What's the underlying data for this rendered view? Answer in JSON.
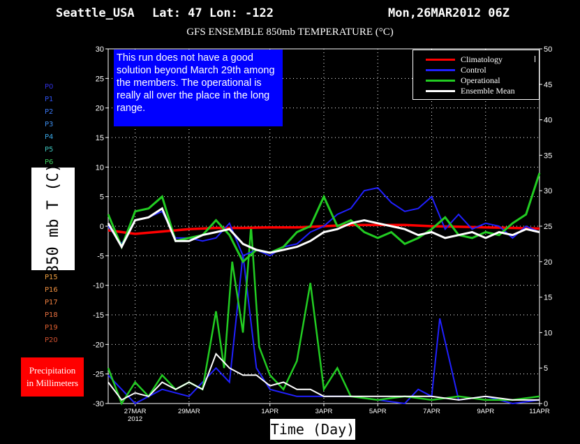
{
  "header": {
    "station": "Seattle_USA",
    "coords": "Lat: 47 Lon: -122",
    "run_time": "Mon,26MAR2012 06Z",
    "subtitle": "GFS ENSEMBLE 850mb TEMPERATURE (°C)"
  },
  "labels": {
    "y_axis": "850 mb T (C)",
    "x_axis": "Time (Day)",
    "precip_line1": "Precipitation",
    "precip_line2": "in Millimeters",
    "note": "This run does not have a good solution beyond March 29th among the members. The operational is really all over the place in the long range."
  },
  "members_top": [
    {
      "label": "P0",
      "color": "#3030e0"
    },
    {
      "label": "P1",
      "color": "#2f52f0"
    },
    {
      "label": "P2",
      "color": "#3a78f5"
    },
    {
      "label": "P3",
      "color": "#3d8ff0"
    },
    {
      "label": "P4",
      "color": "#3aa8e8"
    },
    {
      "label": "P5",
      "color": "#40c8c0"
    },
    {
      "label": "P6",
      "color": "#40d060"
    }
  ],
  "members_bottom": [
    {
      "label": "P15",
      "color": "#f0a040"
    },
    {
      "label": "P16",
      "color": "#f09040"
    },
    {
      "label": "P17",
      "color": "#f08040"
    },
    {
      "label": "P18",
      "color": "#e87040"
    },
    {
      "label": "P19",
      "color": "#e06030"
    },
    {
      "label": "P20",
      "color": "#d05030"
    }
  ],
  "legend": [
    {
      "label": "Climatology",
      "color": "#ff0000"
    },
    {
      "label": "Control",
      "color": "#2020ff"
    },
    {
      "label": "Operational",
      "color": "#22cc22"
    },
    {
      "label": "Ensemble Mean",
      "color": "#ffffff"
    }
  ],
  "chart_data": {
    "type": "line",
    "title": "GFS ENSEMBLE 850mb TEMPERATURE (°C)",
    "xlabel": "Time (Day)",
    "ylabel": "850 mb T (C)",
    "y2label": "Precipitation in Millimeters",
    "x_ticks": [
      "27MAR 2012",
      "29MAR",
      "1APR",
      "3APR",
      "5APR",
      "7APR",
      "9APR",
      "11APR"
    ],
    "x_tick_days": [
      1,
      3,
      6,
      8,
      10,
      12,
      14,
      16
    ],
    "x_range_days": [
      0,
      16
    ],
    "ylim": [
      -30,
      30
    ],
    "y_ticks": [
      -30,
      -25,
      -20,
      -15,
      -10,
      -5,
      0,
      5,
      10,
      15,
      20,
      25,
      30
    ],
    "y2lim": [
      0,
      50
    ],
    "y2_ticks": [
      0,
      5,
      10,
      15,
      20,
      25,
      30,
      35,
      40,
      45,
      50
    ],
    "grid": true,
    "legend_position": "top-right",
    "temperature_series": [
      {
        "name": "Climatology",
        "color": "#ff0000",
        "x": [
          0,
          1,
          2,
          3,
          4,
          5,
          6,
          7,
          8,
          9,
          10,
          11,
          12,
          13,
          14,
          15,
          16
        ],
        "values": [
          -0.7,
          -1.3,
          -0.9,
          -0.5,
          -0.3,
          -0.3,
          -0.2,
          -0.2,
          0,
          0.2,
          0.2,
          0.2,
          0,
          -0.1,
          -0.2,
          -0.3,
          -0.4
        ]
      },
      {
        "name": "Control",
        "color": "#2020ff",
        "x": [
          0,
          0.5,
          1,
          1.5,
          2,
          2.5,
          3,
          3.5,
          4,
          4.5,
          5,
          5.5,
          6,
          6.5,
          7,
          7.5,
          8,
          8.5,
          9,
          9.5,
          10,
          10.5,
          11,
          11.5,
          12,
          12.5,
          13,
          13.5,
          14,
          14.5,
          15,
          15.5,
          16
        ],
        "values": [
          0,
          -3,
          1,
          1.5,
          2.5,
          -2,
          -2,
          -2.5,
          -2,
          0.5,
          -5,
          -4,
          -5,
          -3.5,
          -3,
          -1,
          0,
          2,
          3,
          6,
          6.5,
          4,
          2.5,
          3,
          5,
          -0.5,
          2,
          -0.5,
          0.5,
          0,
          -2,
          0,
          -1
        ]
      },
      {
        "name": "Operational",
        "color": "#22cc22",
        "x": [
          0,
          0.5,
          1,
          1.5,
          2,
          2.5,
          3,
          3.5,
          4,
          4.5,
          5,
          5.5,
          6,
          6.5,
          7,
          7.5,
          8,
          8.5,
          9,
          9.5,
          10,
          10.5,
          11,
          11.5,
          12,
          12.5,
          13,
          13.5,
          14,
          14.5,
          15,
          15.5,
          16
        ],
        "values": [
          2,
          -3.5,
          2.5,
          3,
          5,
          -2.5,
          -2,
          -1.5,
          1,
          -1.5,
          -6,
          -4,
          -4.5,
          -3.5,
          -1,
          0,
          5,
          0,
          1,
          -1,
          -2,
          -1,
          -3,
          -2,
          -0.5,
          1.5,
          -1.5,
          -2,
          -1,
          -1.5,
          0.5,
          2,
          9
        ]
      },
      {
        "name": "Ensemble Mean",
        "color": "#ffffff",
        "x": [
          0,
          0.5,
          1,
          1.5,
          2,
          2.5,
          3,
          3.5,
          4,
          4.5,
          5,
          5.5,
          6,
          6.5,
          7,
          7.5,
          8,
          8.5,
          9,
          9.5,
          10,
          10.5,
          11,
          11.5,
          12,
          12.5,
          13,
          13.5,
          14,
          14.5,
          15,
          15.5,
          16
        ],
        "values": [
          0.5,
          -3.5,
          1,
          1.5,
          3,
          -2.5,
          -2.5,
          -1.5,
          -1,
          -0.5,
          -3,
          -4,
          -4.5,
          -4,
          -3.5,
          -2.5,
          -1,
          -0.5,
          0.5,
          1,
          0.5,
          0,
          -0.5,
          -1.5,
          -1,
          -2,
          -1.5,
          -1,
          -2,
          -1,
          -1.5,
          -0.5,
          -1
        ]
      }
    ],
    "precipitation_series": [
      {
        "name": "Control",
        "color": "#2020ff",
        "x": [
          0,
          1,
          2,
          3,
          4,
          4.5,
          5,
          5.5,
          6,
          7,
          8,
          9,
          10,
          11,
          11.5,
          12,
          12.3,
          13,
          14,
          15,
          16
        ],
        "values": [
          4,
          0,
          2,
          1,
          5,
          3,
          21,
          5,
          2,
          1,
          1,
          1,
          0.5,
          0,
          2,
          1,
          12,
          0.5,
          1,
          0,
          0.5
        ]
      },
      {
        "name": "Operational",
        "color": "#22cc22",
        "x": [
          0,
          0.5,
          1,
          1.5,
          2,
          2.5,
          3,
          3.5,
          4,
          4.3,
          4.6,
          5,
          5.3,
          5.6,
          6,
          6.5,
          7,
          7.5,
          8,
          8.5,
          9,
          10,
          11,
          12,
          13,
          14,
          15,
          16
        ],
        "values": [
          5,
          0,
          3,
          1,
          4,
          2,
          3,
          2,
          13,
          5,
          20,
          10,
          25,
          8,
          4,
          2,
          6,
          17,
          2,
          5,
          1,
          0.5,
          1,
          0.5,
          1,
          0.5,
          0.5,
          1
        ]
      },
      {
        "name": "Ensemble Mean",
        "color": "#ffffff",
        "x": [
          0,
          0.5,
          1,
          1.5,
          2,
          2.5,
          3,
          3.5,
          4,
          4.5,
          5,
          5.5,
          6,
          6.5,
          7,
          7.5,
          8,
          9,
          10,
          11,
          12,
          13,
          14,
          15,
          16
        ],
        "values": [
          3,
          0.5,
          1.5,
          1,
          3,
          2,
          3,
          2,
          7,
          5,
          4,
          4,
          2.5,
          3,
          2,
          2,
          1,
          1,
          1,
          1,
          1,
          0.5,
          1,
          0.5,
          0.5
        ]
      }
    ]
  }
}
